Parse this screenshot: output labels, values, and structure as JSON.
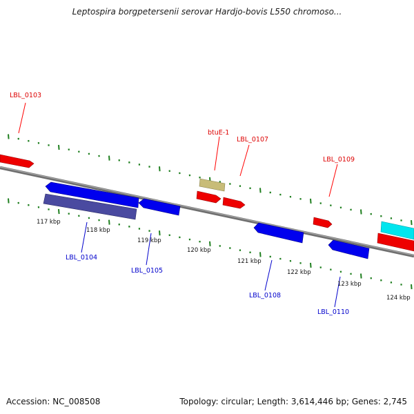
{
  "title": "Leptospira borgpetersenii serovar Hardjo-bovis L550 chromoso...",
  "accession": "Accession: NC_008508",
  "summary": "Topology: circular; Length: 3,614,446 bp; Genes: 2,745",
  "colors": {
    "forward_gene": "#ff0000",
    "reverse_gene": "#0000ff",
    "rna_gene": "#c8bc78",
    "dark_gene": "#4a4aa0",
    "cyan_gene": "#00e5ee",
    "tick": "#1f7f1f",
    "backbone": "#808080"
  },
  "scale_labels": [
    "117 kbp",
    "118 kbp",
    "119 kbp",
    "120 kbp",
    "121 kbp",
    "122 kbp",
    "123 kbp",
    "124 kbp"
  ],
  "top_labels": [
    "LBL_0103",
    "btuE-1",
    "LBL_0107",
    "LBL_0109"
  ],
  "bottom_labels": [
    "LBL_0104",
    "LBL_0105",
    "LBL_0108",
    "LBL_0110"
  ]
}
